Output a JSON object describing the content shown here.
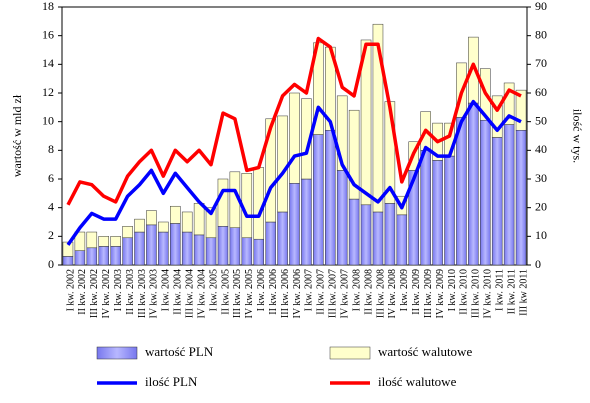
{
  "chart_data": {
    "type": "bar",
    "stacked": true,
    "ylabel": "wartość w mld zł",
    "y2label": "ilość w tys.",
    "categories": [
      "I kw. 2002",
      "II kw. 2002",
      "III kw. 2002",
      "IV kw. 2002",
      "I kw. 2003",
      "II kw. 2003",
      "III kw. 2003",
      "IV kw. 2003",
      "I kw. 2004",
      "II kw. 2004",
      "III kw. 2004",
      "IV kw. 2004",
      "I kw. 2005",
      "II kw. 2005",
      "III kw. 2005",
      "IV kw. 2005",
      "I kw. 2006",
      "II kw. 2006",
      "III kw. 2006",
      "IV kw. 2006",
      "I kw. 2007",
      "II kw. 2007",
      "III kw. 2007",
      "IV kw. 2007",
      "I kw. 2008",
      "II kw. 2008",
      "III kw. 2008",
      "IV kw. 2008",
      "I kw. 2009",
      "II kw. 2009",
      "III kw. 2009",
      "IV kw. 2009",
      "I kw. 2010",
      "II kw. 2010",
      "III kw. 2010",
      "IV kw. 2010",
      "I kw. 2011",
      "II kw. 2011",
      "III kw 2011"
    ],
    "series": [
      {
        "name": "wartość PLN",
        "type": "bar",
        "color": "#9999ff",
        "values": [
          0.6,
          1.0,
          1.2,
          1.3,
          1.3,
          1.9,
          2.3,
          2.8,
          2.3,
          2.9,
          2.3,
          2.1,
          1.9,
          2.7,
          2.6,
          1.9,
          1.8,
          3.0,
          3.7,
          5.7,
          6.0,
          9.1,
          9.4,
          6.6,
          4.6,
          4.2,
          3.7,
          4.3,
          3.5,
          6.6,
          8.0,
          7.3,
          7.6,
          10.3,
          11.3,
          10.1,
          8.9,
          9.8,
          9.4
        ]
      },
      {
        "name": "wartość walutowe",
        "type": "bar",
        "color": "#ffffcc",
        "values": [
          1.0,
          1.3,
          1.1,
          0.7,
          0.7,
          0.8,
          0.9,
          1.0,
          0.7,
          1.2,
          1.4,
          2.2,
          2.1,
          3.3,
          3.9,
          4.5,
          5.0,
          7.2,
          6.7,
          6.3,
          5.6,
          6.4,
          5.8,
          5.2,
          6.2,
          11.5,
          13.1,
          7.1,
          1.3,
          2.0,
          2.7,
          2.6,
          2.3,
          3.8,
          4.6,
          3.6,
          2.9,
          2.9,
          2.8
        ]
      },
      {
        "name": "ilość PLN",
        "type": "line",
        "axis": "y2",
        "color": "#0000ff",
        "values": [
          7,
          13,
          18,
          16,
          16,
          24,
          28,
          33,
          25,
          32,
          27,
          22,
          18,
          26,
          26,
          17,
          17,
          27,
          32,
          38,
          39,
          55,
          50,
          35,
          28,
          25,
          22,
          27,
          20,
          30,
          41,
          38,
          38,
          50,
          57,
          52,
          47,
          52,
          50
        ]
      },
      {
        "name": "ilość walutowe",
        "type": "line",
        "axis": "y2",
        "color": "#ff0000",
        "values": [
          21,
          29,
          28,
          24,
          22,
          31,
          36,
          40,
          31,
          40,
          36,
          40,
          35,
          53,
          51,
          33,
          34,
          48,
          59,
          63,
          60,
          79,
          76,
          62,
          59,
          77,
          77,
          55,
          29,
          39,
          47,
          43,
          45,
          60,
          70,
          60,
          54,
          61,
          59
        ]
      }
    ],
    "ylim": [
      0,
      18
    ],
    "yticks": [
      0,
      2,
      4,
      6,
      8,
      10,
      12,
      14,
      16,
      18
    ],
    "y2lim": [
      0,
      90
    ],
    "y2ticks": [
      0,
      10,
      20,
      30,
      40,
      50,
      60,
      70,
      80,
      90
    ]
  }
}
